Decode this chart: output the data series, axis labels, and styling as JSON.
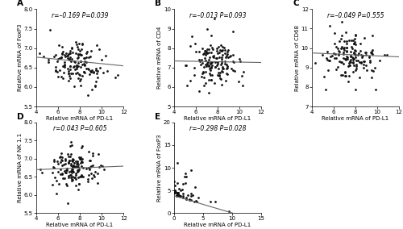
{
  "panels": [
    {
      "label": "A",
      "annotation": "r=–0.169 P=0.039",
      "xlabel": "Relative mRNA of PD-L1",
      "ylabel": "Relative mRNA of FoxP3",
      "xlim": [
        4,
        12
      ],
      "ylim": [
        5.5,
        8.0
      ],
      "xticks": [
        4,
        6,
        8,
        10,
        12
      ],
      "yticks": [
        5.5,
        6.0,
        6.5,
        7.0,
        7.5,
        8.0
      ],
      "slope": -0.028,
      "intercept": 6.88,
      "n_points": 149,
      "x_center": 7.8,
      "x_spread": 1.2,
      "y_spread": 0.28,
      "seed": 12
    },
    {
      "label": "B",
      "annotation": "r=–0.013 P=0.093",
      "xlabel": "Relative mRNA of PD-L1",
      "ylabel": "Relative mRNA of CD4",
      "xlim": [
        4,
        12
      ],
      "ylim": [
        5,
        10
      ],
      "xticks": [
        4,
        6,
        8,
        10,
        12
      ],
      "yticks": [
        5,
        6,
        7,
        8,
        9,
        10
      ],
      "slope": -0.01,
      "intercept": 7.38,
      "n_points": 149,
      "x_center": 7.8,
      "x_spread": 1.2,
      "y_spread": 0.65,
      "seed": 13
    },
    {
      "label": "C",
      "annotation": "r=–0.049 P=0.555",
      "xlabel": "Relative mRNA of PD-L1",
      "ylabel": "Relative mRNA of CD68",
      "xlim": [
        4,
        12
      ],
      "ylim": [
        7,
        12
      ],
      "xticks": [
        4,
        6,
        8,
        10,
        12
      ],
      "yticks": [
        7,
        8,
        9,
        10,
        11,
        12
      ],
      "slope": -0.025,
      "intercept": 9.85,
      "n_points": 149,
      "x_center": 7.8,
      "x_spread": 1.15,
      "y_spread": 0.55,
      "seed": 14
    },
    {
      "label": "D",
      "annotation": "r=0.043 P=0.605",
      "xlabel": "Relative mRNA of PD-L1",
      "ylabel": "Relative mRNA of NK 1.1",
      "xlim": [
        4,
        12
      ],
      "ylim": [
        5.5,
        8.0
      ],
      "xticks": [
        4,
        6,
        8,
        10,
        12
      ],
      "yticks": [
        5.5,
        6.0,
        6.5,
        7.0,
        7.5,
        8.0
      ],
      "slope": 0.012,
      "intercept": 6.65,
      "n_points": 149,
      "x_center": 7.5,
      "x_spread": 1.1,
      "y_spread": 0.28,
      "seed": 15
    },
    {
      "label": "E",
      "annotation": "r=–0.298 P=0.028",
      "xlabel": "Relative mRNA of PD-L1",
      "ylabel": "Relative mRNA of FoxP3",
      "xlim": [
        0,
        15
      ],
      "ylim": [
        0,
        20
      ],
      "xticks": [
        0,
        5,
        10,
        15
      ],
      "yticks": [
        0,
        5,
        10,
        15,
        20
      ],
      "slope": -0.38,
      "intercept": 3.8,
      "n_points": 54,
      "x_center": 3.0,
      "x_spread": 3.5,
      "y_spread": 2.5,
      "seed": 16
    }
  ],
  "dot_color": "#111111",
  "dot_size": 4,
  "line_color": "#666666",
  "font_size_label": 5.0,
  "font_size_annot": 5.5,
  "font_size_tick": 5.0,
  "font_size_panel": 7.5
}
